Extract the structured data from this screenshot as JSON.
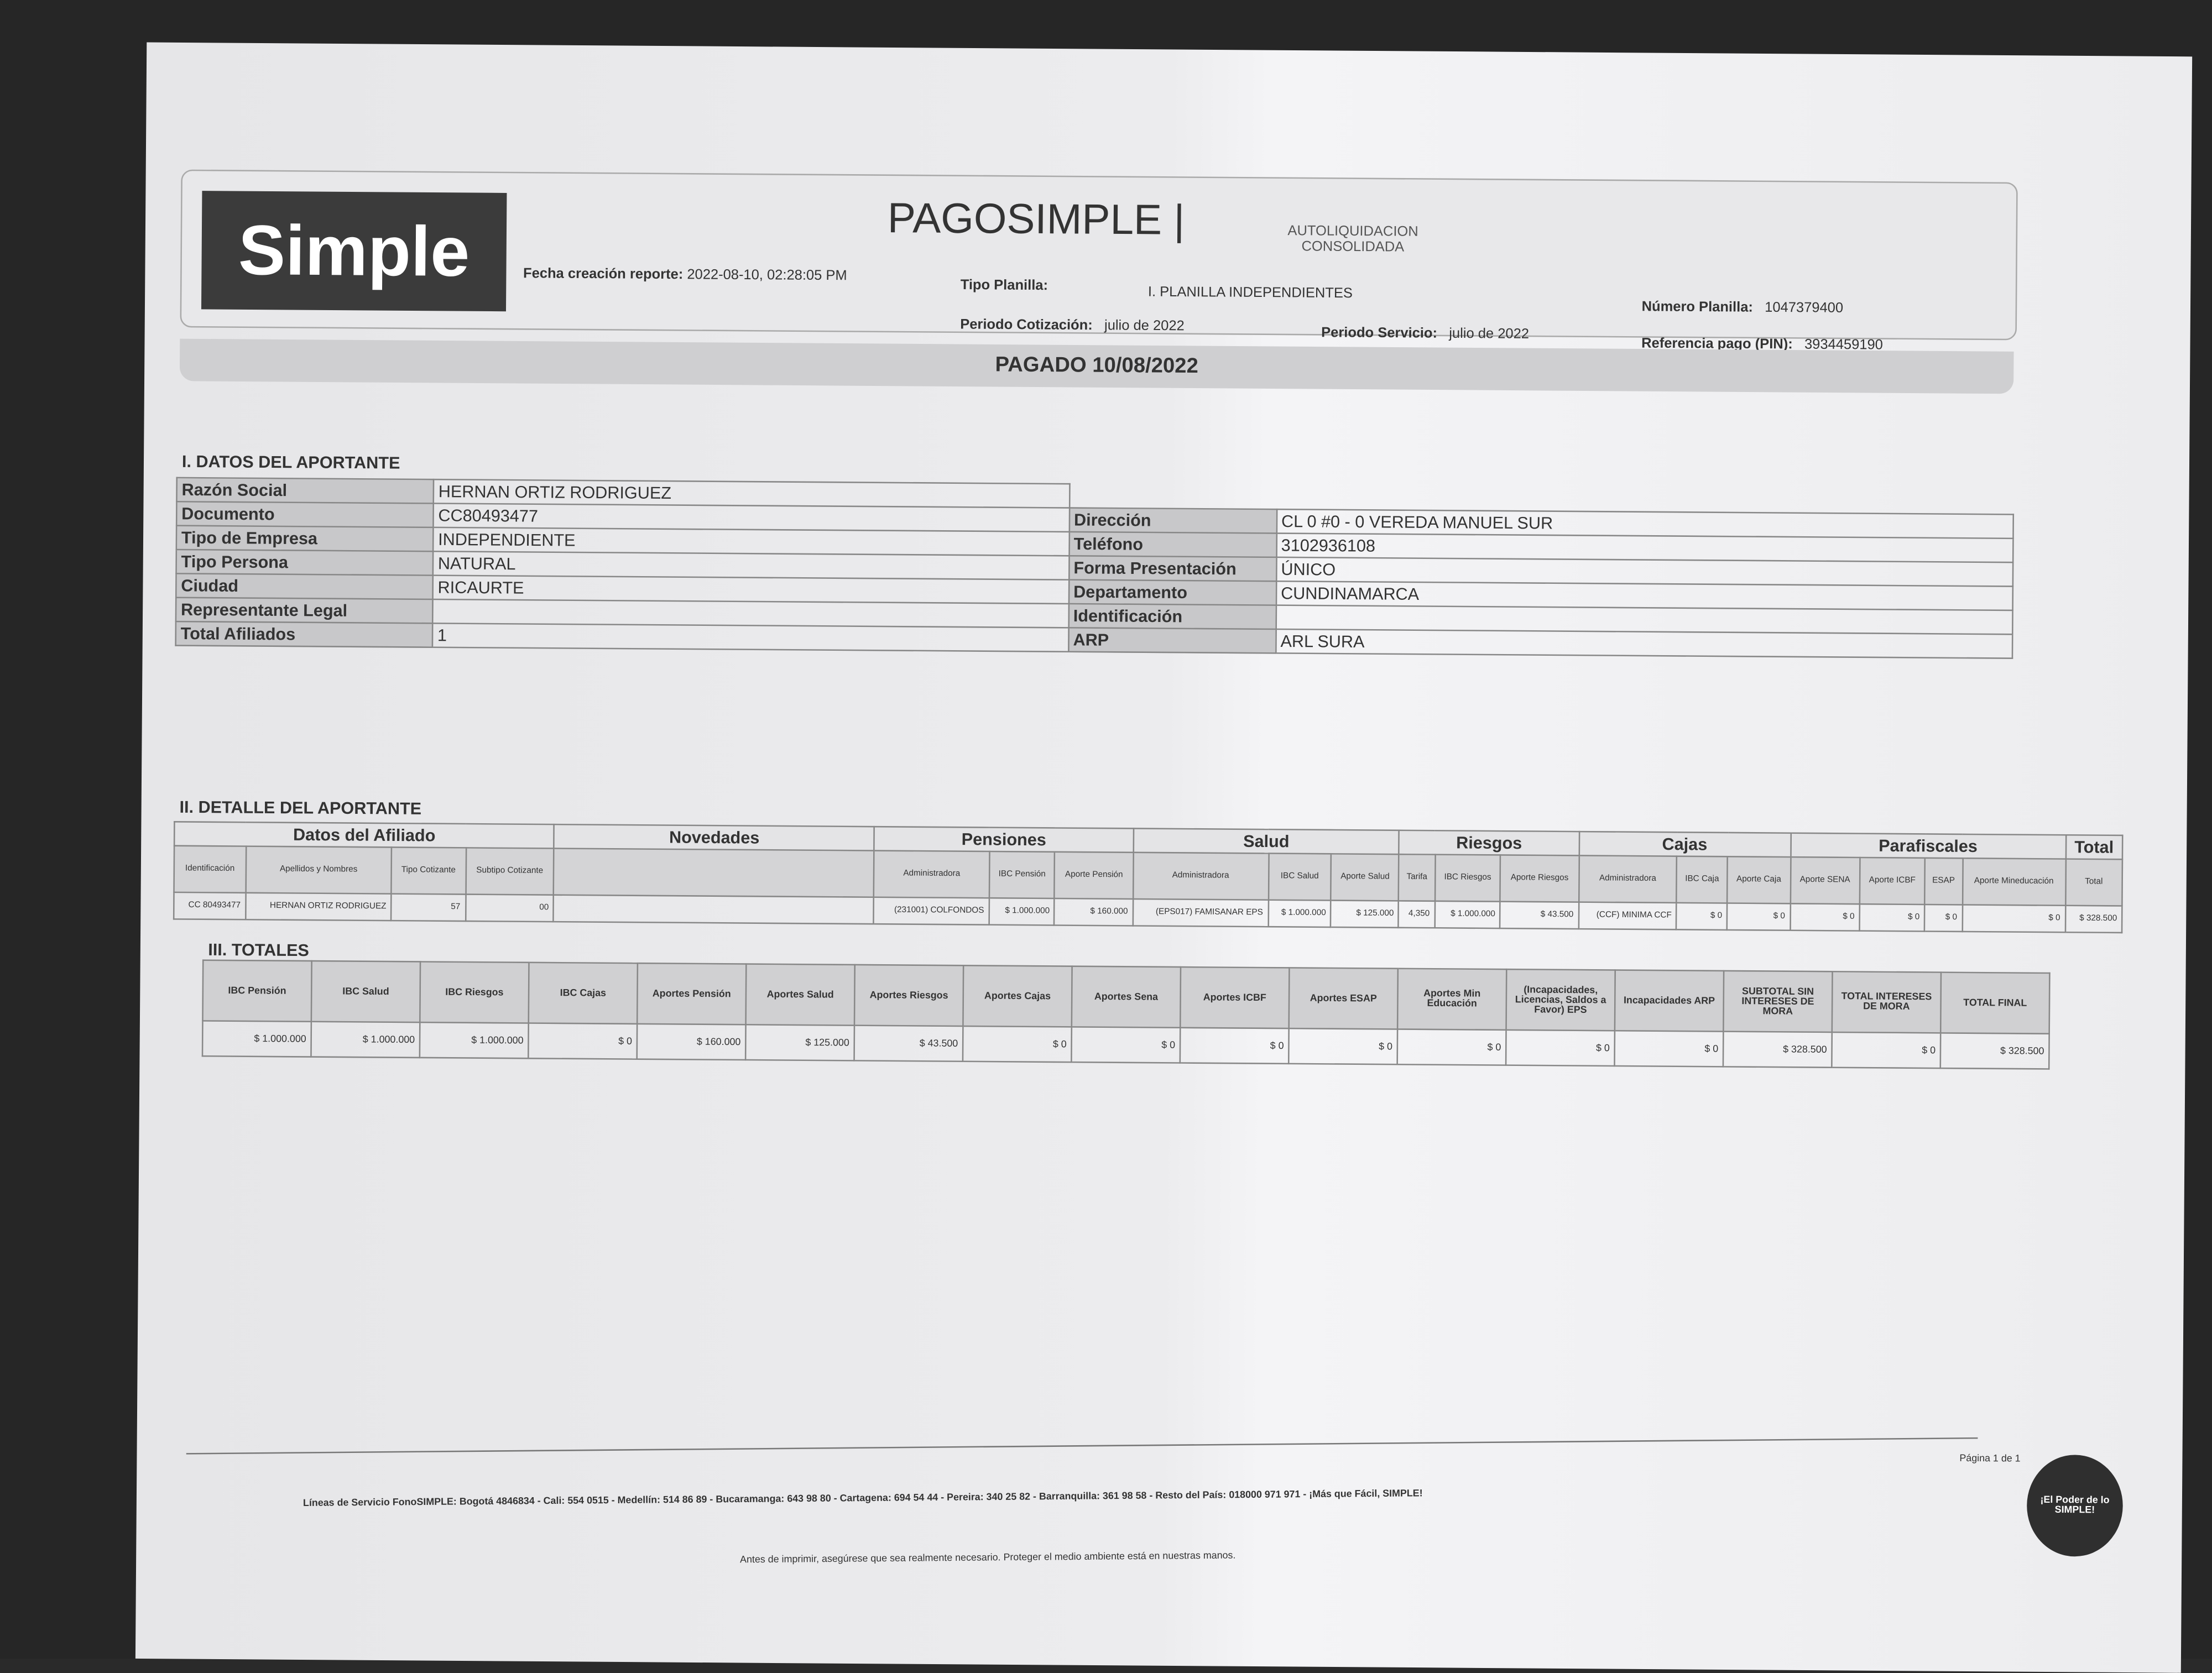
{
  "header": {
    "logo": "Simple",
    "title": "PAGOSIMPLE |",
    "subtitle": "AUTOLIQUIDACION CONSOLIDADA",
    "fecha_label": "Fecha creación reporte:",
    "fecha_value": "2022-08-10, 02:28:05 PM",
    "tipo_planilla_label": "Tipo Planilla:",
    "tipo_planilla_value": "I. PLANILLA INDEPENDIENTES",
    "numero_planilla_label": "Número Planilla:",
    "numero_planilla_value": "1047379400",
    "periodo_cotizacion_label": "Periodo Cotización:",
    "periodo_cotizacion_value": "julio de 2022",
    "periodo_servicio_label": "Periodo Servicio:",
    "periodo_servicio_value": "julio de 2022",
    "referencia_label": "Referencia pago (PIN):",
    "referencia_value": "3934459190",
    "status": "PAGADO 10/08/2022"
  },
  "section1": {
    "title": "I. DATOS DEL APORTANTE",
    "left": [
      {
        "label": "Razón Social",
        "value": "HERNAN ORTIZ RODRIGUEZ"
      },
      {
        "label": "Documento",
        "value": "CC80493477"
      },
      {
        "label": "Tipo de Empresa",
        "value": "INDEPENDIENTE"
      },
      {
        "label": "Tipo Persona",
        "value": "NATURAL"
      },
      {
        "label": "Ciudad",
        "value": "RICAURTE"
      },
      {
        "label": "Representante Legal",
        "value": ""
      },
      {
        "label": "Total Afiliados",
        "value": "1"
      }
    ],
    "right": [
      {
        "label": "Dirección",
        "value": "CL 0 #0 - 0 VEREDA MANUEL SUR"
      },
      {
        "label": "Teléfono",
        "value": "3102936108"
      },
      {
        "label": "Forma Presentación",
        "value": "ÚNICO"
      },
      {
        "label": "Departamento",
        "value": "CUNDINAMARCA"
      },
      {
        "label": "Identificación",
        "value": ""
      },
      {
        "label": "ARP",
        "value": "ARL SURA"
      }
    ]
  },
  "section2": {
    "title": "II. DETALLE DEL APORTANTE",
    "groups": [
      "Datos del Afiliado",
      "Novedades",
      "Pensiones",
      "Salud",
      "Riesgos",
      "Cajas",
      "Parafiscales",
      "Total"
    ],
    "columns": [
      "Identificación",
      "Apellidos y Nombres",
      "Tipo Cotizante",
      "Subtipo Cotizante",
      "Administradora",
      "IBC Pensión",
      "Aporte Pensión",
      "Administradora",
      "IBC Salud",
      "Aporte Salud",
      "Tarifa",
      "IBC Riesgos",
      "Aporte Riesgos",
      "Administradora",
      "IBC Caja",
      "Aporte Caja",
      "Aporte SENA",
      "Aporte ICBF",
      "ESAP",
      "Aporte Mineducación",
      "Total"
    ],
    "row": [
      "CC 80493477",
      "HERNAN ORTIZ RODRIGUEZ",
      "57",
      "00",
      "(231001) COLFONDOS",
      "$ 1.000.000",
      "$ 160.000",
      "(EPS017) FAMISANAR EPS",
      "$ 1.000.000",
      "$ 125.000",
      "4,350",
      "$ 1.000.000",
      "$ 43.500",
      "(CCF) MINIMA CCF",
      "$ 0",
      "$ 0",
      "$ 0",
      "$ 0",
      "$ 0",
      "$ 0",
      "$ 328.500"
    ]
  },
  "section3": {
    "title": "III. TOTALES",
    "columns": [
      "IBC Pensión",
      "IBC Salud",
      "IBC Riesgos",
      "IBC Cajas",
      "Aportes Pensión",
      "Aportes Salud",
      "Aportes Riesgos",
      "Aportes Cajas",
      "Aportes Sena",
      "Aportes ICBF",
      "Aportes ESAP",
      "Aportes Min Educación",
      "(Incapacidades, Licencias, Saldos a Favor) EPS",
      "Incapacidades ARP",
      "SUBTOTAL SIN INTERESES DE MORA",
      "TOTAL INTERESES DE MORA",
      "TOTAL FINAL"
    ],
    "values": [
      "$ 1.000.000",
      "$ 1.000.000",
      "$ 1.000.000",
      "$ 0",
      "$ 160.000",
      "$ 125.000",
      "$ 43.500",
      "$ 0",
      "$ 0",
      "$ 0",
      "$ 0",
      "$ 0",
      "$ 0",
      "$ 0",
      "$ 328.500",
      "$ 0",
      "$ 328.500"
    ]
  },
  "footer": {
    "page": "Página 1 de 1",
    "lines": "Líneas de Servicio FonoSIMPLE: Bogotá 4846834 - Cali: 554 0515 - Medellín: 514 86 89 - Bucaramanga: 643 98 80 - Cartagena: 694 54 44 - Pereira: 340 25 82 - Barranquilla: 361 98 58 - Resto del País: 018000 971 971 - ¡Más que Fácil, SIMPLE!",
    "note": "Antes de imprimir, asegúrese que sea realmente necesario. Proteger el medio ambiente está en nuestras manos.",
    "badge": "¡El Poder de lo SIMPLE!"
  }
}
